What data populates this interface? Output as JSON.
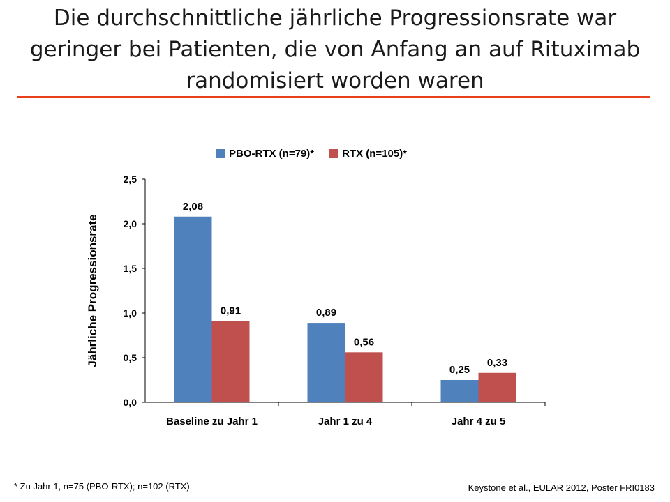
{
  "title": "Die durchschnittliche jährliche Progressionsrate war geringer bei Patienten, die von Anfang an auf Rituximab randomisiert worden waren",
  "colors": {
    "accent_rule": "#e8401c",
    "series_blue": "#4f81bd",
    "series_red": "#c0504d"
  },
  "chart_data": {
    "type": "bar",
    "categories": [
      "Baseline zu Jahr 1",
      "Jahr 1 zu 4",
      "Jahr 4 zu  5"
    ],
    "series": [
      {
        "name": "PBO-RTX (n=79)*",
        "values": [
          2.08,
          0.89,
          0.25
        ],
        "labels": [
          "2,08",
          "0,89",
          "0,25"
        ],
        "color": "#4f81bd"
      },
      {
        "name": "RTX (n=105)*",
        "values": [
          0.91,
          0.56,
          0.33
        ],
        "labels": [
          "0,91",
          "0,56",
          "0,33"
        ],
        "color": "#c0504d"
      }
    ],
    "ylabel": "Jährliche Progressionsrate",
    "xlabel": "",
    "ylim": [
      0,
      2.5
    ],
    "yticks": [
      0,
      0.5,
      1.0,
      1.5,
      2.0,
      2.5
    ],
    "ytick_labels": [
      "0,0",
      "0,5",
      "1,0",
      "1,5",
      "2,0",
      "2,5"
    ],
    "grid": false,
    "legend_position": "top"
  },
  "footnote": "* Zu Jahr 1, n=75 (PBO-RTX); n=102 (RTX).",
  "source": "Keystone et al., EULAR 2012, Poster FRI0183"
}
